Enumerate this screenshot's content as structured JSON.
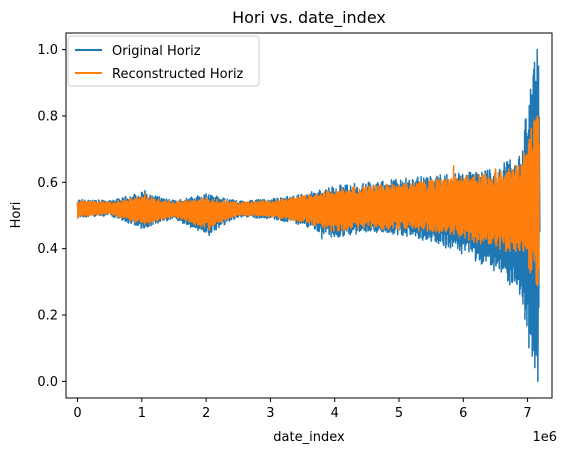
{
  "chart_data": {
    "type": "line",
    "title": "Hori vs. date_index",
    "xlabel": "date_index",
    "ylabel": "Hori",
    "x_offset_label": "1e6",
    "xlim": [
      -180000,
      7380000
    ],
    "ylim": [
      -0.05,
      1.05
    ],
    "x_ticks": [
      0,
      1000000,
      2000000,
      3000000,
      4000000,
      5000000,
      6000000,
      7000000
    ],
    "x_tick_labels": [
      "0",
      "1",
      "2",
      "3",
      "4",
      "5",
      "6",
      "7"
    ],
    "y_ticks": [
      0.0,
      0.2,
      0.4,
      0.6,
      0.8,
      1.0
    ],
    "y_tick_labels": [
      "0.0",
      "0.2",
      "0.4",
      "0.6",
      "0.8",
      "1.0"
    ],
    "grid": false,
    "legend_position": "top-left",
    "series": [
      {
        "name": "Original Horiz",
        "color": "#1f77b4",
        "envelope_x": [
          0,
          500000,
          1000000,
          1500000,
          2000000,
          2500000,
          3000000,
          3500000,
          4000000,
          4500000,
          5000000,
          5500000,
          6000000,
          6500000,
          6900000,
          7100000,
          7180000
        ],
        "envelope_upper": [
          0.55,
          0.545,
          0.57,
          0.545,
          0.565,
          0.545,
          0.55,
          0.565,
          0.59,
          0.6,
          0.61,
          0.62,
          0.63,
          0.64,
          0.7,
          1.0,
          0.85
        ],
        "envelope_lower": [
          0.49,
          0.5,
          0.46,
          0.49,
          0.44,
          0.495,
          0.49,
          0.47,
          0.43,
          0.45,
          0.44,
          0.42,
          0.38,
          0.33,
          0.25,
          0.0,
          0.1
        ],
        "spikes": [
          {
            "x": 1050000,
            "y": 0.575
          },
          {
            "x": 2000000,
            "y": 0.565
          },
          {
            "x": 2050000,
            "y": 0.44
          },
          {
            "x": 3800000,
            "y": 0.43
          },
          {
            "x": 6200000,
            "y": 0.63
          },
          {
            "x": 6850000,
            "y": 0.31
          },
          {
            "x": 7000000,
            "y": 0.72
          },
          {
            "x": 7050000,
            "y": 0.28
          },
          {
            "x": 7080000,
            "y": 0.11
          },
          {
            "x": 7110000,
            "y": 0.3
          },
          {
            "x": 7150000,
            "y": 1.0
          },
          {
            "x": 7160000,
            "y": 0.0
          },
          {
            "x": 7170000,
            "y": 0.95
          },
          {
            "x": 7190000,
            "y": 0.45
          }
        ]
      },
      {
        "name": "Reconstructed Horiz",
        "color": "#ff7f0e",
        "envelope_x": [
          0,
          500000,
          1000000,
          1500000,
          2000000,
          2500000,
          3000000,
          3500000,
          4000000,
          4500000,
          5000000,
          5500000,
          6000000,
          6500000,
          6900000,
          7100000,
          7180000
        ],
        "envelope_upper": [
          0.545,
          0.54,
          0.56,
          0.54,
          0.555,
          0.54,
          0.545,
          0.56,
          0.58,
          0.59,
          0.6,
          0.61,
          0.62,
          0.63,
          0.66,
          0.8,
          0.8
        ],
        "envelope_lower": [
          0.495,
          0.505,
          0.47,
          0.495,
          0.46,
          0.5,
          0.495,
          0.48,
          0.45,
          0.46,
          0.455,
          0.45,
          0.43,
          0.4,
          0.38,
          0.3,
          0.28
        ],
        "spikes": [
          {
            "x": 1050000,
            "y": 0.565
          },
          {
            "x": 2000000,
            "y": 0.555
          },
          {
            "x": 2050000,
            "y": 0.455
          },
          {
            "x": 5850000,
            "y": 0.65
          },
          {
            "x": 6500000,
            "y": 0.64
          },
          {
            "x": 7000000,
            "y": 0.66
          },
          {
            "x": 7100000,
            "y": 0.78
          },
          {
            "x": 7150000,
            "y": 0.8
          },
          {
            "x": 7160000,
            "y": 0.29
          }
        ]
      }
    ]
  }
}
